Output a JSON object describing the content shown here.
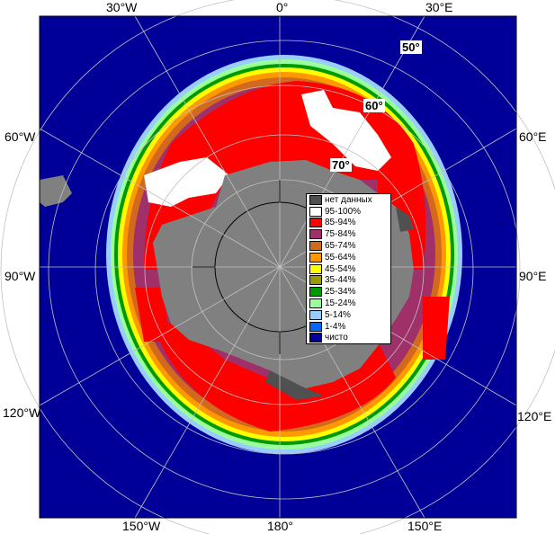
{
  "graticule_labels": {
    "top": [
      "30°W",
      "0°",
      "30°E"
    ],
    "left": [
      "60°W",
      "90°W",
      "120°W"
    ],
    "right": [
      "60°E",
      "90°E",
      "120°E"
    ],
    "bottom": [
      "150°W",
      "180°",
      "150°E"
    ]
  },
  "latitude_labels": [
    "50°",
    "60°",
    "70°"
  ],
  "legend": {
    "items": [
      {
        "label": "нет данных",
        "color": "#505050"
      },
      {
        "label": "95-100%",
        "color": "#ffffff"
      },
      {
        "label": "85-94%",
        "color": "#ff0000"
      },
      {
        "label": "75-84%",
        "color": "#a0306a"
      },
      {
        "label": "65-74%",
        "color": "#d2691e"
      },
      {
        "label": "55-64%",
        "color": "#ff9900"
      },
      {
        "label": "45-54%",
        "color": "#ffff00"
      },
      {
        "label": "35-44%",
        "color": "#999900"
      },
      {
        "label": "25-34%",
        "color": "#009900"
      },
      {
        "label": "15-24%",
        "color": "#99ff99"
      },
      {
        "label": "5-14%",
        "color": "#99ccff"
      },
      {
        "label": "1-4%",
        "color": "#0066ff"
      },
      {
        "label": "чисто",
        "color": "#000099"
      }
    ]
  },
  "colors": {
    "ocean": "#000099",
    "land": "#808080",
    "graticule": "#c0c0c0"
  }
}
